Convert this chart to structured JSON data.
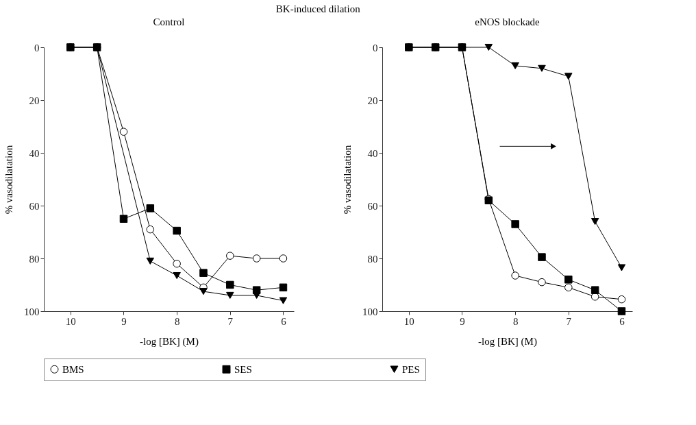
{
  "chart_data": [
    {
      "type": "line",
      "title": "Control",
      "annotations": [
        "BK-induced dilation"
      ],
      "xlabel": "-log [BK] (M)",
      "ylabel": "% vasodilatation",
      "x": [
        10,
        9.5,
        9,
        8.5,
        8,
        7.5,
        7,
        6.5,
        6
      ],
      "xlim": [
        10.5,
        5.8
      ],
      "xticks": [
        10,
        9,
        8,
        7,
        6
      ],
      "ylim": [
        100,
        0
      ],
      "yticks": [
        0,
        20,
        40,
        60,
        80,
        100
      ],
      "grid": false,
      "legend": "bottom",
      "line_style": "solid",
      "series": [
        {
          "name": "BMS",
          "color": "#ffffff",
          "marker": "circle",
          "values": [
            0,
            0,
            32,
            69,
            82,
            91,
            79,
            80,
            80
          ]
        },
        {
          "name": "SES",
          "color": "#000000",
          "marker": "square",
          "values": [
            0,
            0,
            65,
            61,
            69.5,
            85.5,
            90,
            92,
            91
          ]
        },
        {
          "name": "PES",
          "color": "#000000",
          "marker": "triangle",
          "x": [
            10,
            9.5,
            8.5,
            8,
            7.5,
            7,
            6.5,
            6
          ],
          "values": [
            0,
            0,
            81,
            86.5,
            92.5,
            94,
            94,
            96
          ]
        }
      ]
    },
    {
      "type": "line",
      "title": "eNOS blockade",
      "xlabel": "-log [BK] (M)",
      "ylabel": "% vasodilatation",
      "x": [
        10,
        9.5,
        9,
        8.5,
        8,
        7.5,
        7,
        6.5,
        6
      ],
      "xlim": [
        10.5,
        5.8
      ],
      "xticks": [
        10,
        9,
        8,
        7,
        6
      ],
      "ylim": [
        100,
        0
      ],
      "yticks": [
        0,
        20,
        40,
        60,
        80,
        100
      ],
      "grid": false,
      "legend": "bottom",
      "line_style": "solid",
      "series": [
        {
          "name": "BMS",
          "color": "#ffffff",
          "marker": "circle",
          "values": [
            0,
            0,
            0,
            57.5,
            86.5,
            89,
            91,
            94.5,
            95.5
          ]
        },
        {
          "name": "SES",
          "color": "#000000",
          "marker": "square",
          "values": [
            0,
            0,
            0,
            58,
            67,
            79.5,
            88,
            92,
            100
          ]
        },
        {
          "name": "PES",
          "color": "#000000",
          "marker": "triangle",
          "values": [
            0,
            0,
            0,
            0,
            7,
            8,
            11,
            66,
            83.5
          ]
        }
      ]
    }
  ]
}
